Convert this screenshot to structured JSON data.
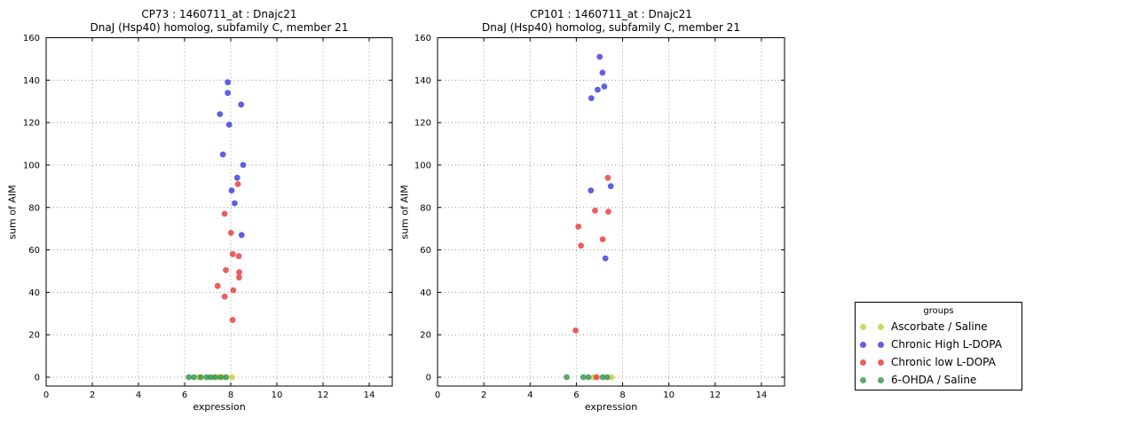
{
  "figure": {
    "background": "#ffffff"
  },
  "colors": {
    "ascorbate_saline": "#c8c832",
    "chronic_high_ldopa": "#3232dc",
    "chronic_low_ldopa": "#e63232",
    "ohda_saline": "#2d9141",
    "grid": "#999999",
    "axis": "#000000"
  },
  "legend": {
    "title": "groups",
    "entries": [
      {
        "label": "Ascorbate / Saline",
        "color": "#c8c832"
      },
      {
        "label": "Chronic High L-DOPA",
        "color": "#3232dc"
      },
      {
        "label": "Chronic low L-DOPA",
        "color": "#e63232"
      },
      {
        "label": "6-OHDA / Saline",
        "color": "#2d9141"
      }
    ]
  },
  "chart_data": [
    {
      "type": "scatter",
      "title": "CP73 : 1460711_at : Dnajc21",
      "subtitle": "DnaJ (Hsp40) homolog, subfamily C, member 21",
      "xlabel": "expression",
      "ylabel": "sum of AIM",
      "xlim": [
        0,
        15
      ],
      "ylim": [
        -4,
        160
      ],
      "xticks": [
        0,
        2,
        4,
        6,
        8,
        10,
        12,
        14
      ],
      "yticks": [
        0,
        20,
        40,
        60,
        80,
        100,
        120,
        140,
        160
      ],
      "grid": "dotted",
      "series": [
        {
          "name": "Ascorbate / Saline",
          "color": "#c8c832",
          "points": [
            [
              6.6,
              0
            ],
            [
              7.4,
              0
            ],
            [
              7.67,
              0
            ],
            [
              8.05,
              0
            ]
          ]
        },
        {
          "name": "Chronic High L-DOPA",
          "color": "#3232dc",
          "points": [
            [
              7.87,
              139
            ],
            [
              7.87,
              134
            ],
            [
              8.45,
              128.5
            ],
            [
              7.53,
              124
            ],
            [
              7.93,
              119
            ],
            [
              7.66,
              105
            ],
            [
              8.54,
              100
            ],
            [
              8.28,
              94
            ],
            [
              8.04,
              88
            ],
            [
              8.17,
              82
            ],
            [
              8.47,
              67
            ]
          ]
        },
        {
          "name": "Chronic low L-DOPA",
          "color": "#e63232",
          "points": [
            [
              8.31,
              91
            ],
            [
              7.73,
              77
            ],
            [
              8.01,
              68
            ],
            [
              8.09,
              58
            ],
            [
              8.35,
              57
            ],
            [
              7.79,
              50.5
            ],
            [
              8.37,
              49.5
            ],
            [
              8.36,
              47
            ],
            [
              7.43,
              43
            ],
            [
              8.11,
              41
            ],
            [
              7.74,
              38
            ],
            [
              8.08,
              27
            ]
          ]
        },
        {
          "name": "6-OHDA / Saline",
          "color": "#2d9141",
          "points": [
            [
              6.18,
              0
            ],
            [
              6.4,
              0
            ],
            [
              6.7,
              0
            ],
            [
              6.95,
              0
            ],
            [
              7.12,
              0
            ],
            [
              7.3,
              0
            ],
            [
              7.55,
              0
            ],
            [
              7.8,
              0
            ]
          ]
        }
      ]
    },
    {
      "type": "scatter",
      "title": "CP101 : 1460711_at : Dnajc21",
      "subtitle": "DnaJ (Hsp40) homolog, subfamily C, member 21",
      "xlabel": "expression",
      "ylabel": "sum of AIM",
      "xlim": [
        0,
        15
      ],
      "ylim": [
        -4,
        160
      ],
      "xticks": [
        0,
        2,
        4,
        6,
        8,
        10,
        12,
        14
      ],
      "yticks": [
        0,
        20,
        40,
        60,
        80,
        100,
        120,
        140,
        160
      ],
      "grid": "dotted",
      "series": [
        {
          "name": "Ascorbate / Saline",
          "color": "#c8c832",
          "points": [
            [
              6.75,
              0
            ],
            [
              7.52,
              0
            ]
          ]
        },
        {
          "name": "Chronic High L-DOPA",
          "color": "#3232dc",
          "points": [
            [
              7.01,
              151
            ],
            [
              7.13,
              143.5
            ],
            [
              7.21,
              137
            ],
            [
              6.92,
              135.5
            ],
            [
              6.65,
              131.5
            ],
            [
              7.49,
              90
            ],
            [
              6.63,
              88
            ],
            [
              7.26,
              56
            ]
          ]
        },
        {
          "name": "Chronic low L-DOPA",
          "color": "#e63232",
          "points": [
            [
              7.36,
              94
            ],
            [
              6.81,
              78.5
            ],
            [
              7.38,
              78
            ],
            [
              6.09,
              71
            ],
            [
              7.14,
              65
            ],
            [
              6.2,
              62
            ],
            [
              5.97,
              22
            ],
            [
              6.88,
              0
            ]
          ]
        },
        {
          "name": "6-OHDA / Saline",
          "color": "#2d9141",
          "points": [
            [
              5.58,
              0
            ],
            [
              6.3,
              0
            ],
            [
              6.52,
              0
            ],
            [
              7.14,
              0
            ],
            [
              7.33,
              0
            ]
          ]
        }
      ]
    }
  ]
}
